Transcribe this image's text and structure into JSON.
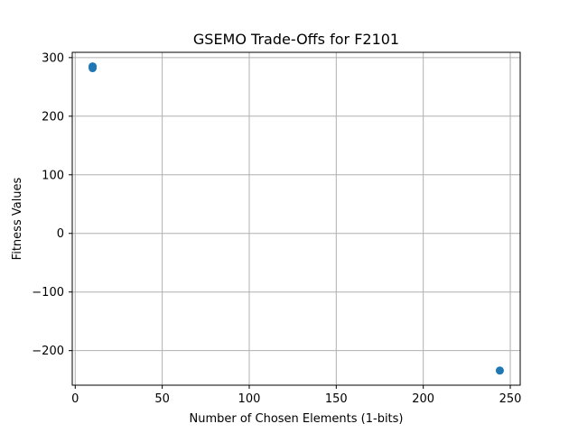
{
  "chart_data": {
    "type": "scatter",
    "title": "GSEMO Trade-Offs for F2101",
    "xlabel": "Number of Chosen Elements (1-bits)",
    "ylabel": "Fitness Values",
    "xlim": [
      -1.7,
      255.7
    ],
    "ylim": [
      -259,
      309
    ],
    "xticks": [
      0,
      50,
      100,
      150,
      200,
      250
    ],
    "xtick_labels": [
      "0",
      "50",
      "100",
      "150",
      "200",
      "250"
    ],
    "yticks": [
      -200,
      -100,
      0,
      100,
      200,
      300
    ],
    "ytick_labels": [
      "−200",
      "−100",
      "0",
      "100",
      "200",
      "300"
    ],
    "grid": true,
    "series": [
      {
        "color": "#1f77b4",
        "points": [
          {
            "x": 10,
            "y": 285
          },
          {
            "x": 10,
            "y": 282
          },
          {
            "x": 244,
            "y": -234
          }
        ]
      }
    ],
    "colors": {
      "grid": "#b0b0b0",
      "axis": "#000000",
      "marker": "#1f77b4"
    }
  }
}
